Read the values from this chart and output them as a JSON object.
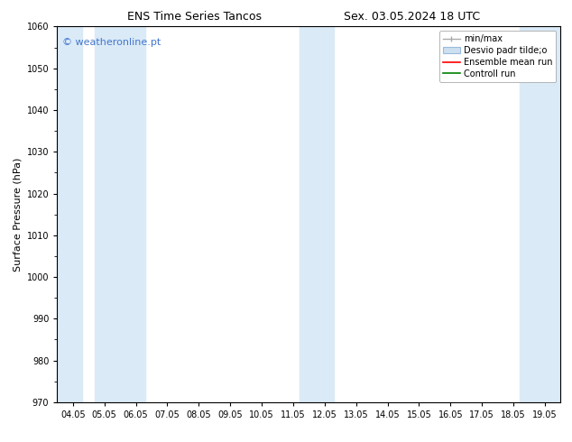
{
  "title_left": "ENS Time Series Tancos",
  "title_right": "Sex. 03.05.2024 18 UTC",
  "ylabel": "Surface Pressure (hPa)",
  "ylim": [
    970,
    1060
  ],
  "yticks": [
    970,
    980,
    990,
    1000,
    1010,
    1020,
    1030,
    1040,
    1050,
    1060
  ],
  "xtick_labels": [
    "04.05",
    "05.05",
    "06.05",
    "07.05",
    "08.05",
    "09.05",
    "10.05",
    "11.05",
    "12.05",
    "13.05",
    "14.05",
    "15.05",
    "16.05",
    "17.05",
    "18.05",
    "19.05"
  ],
  "x_values": [
    0,
    1,
    2,
    3,
    4,
    5,
    6,
    7,
    8,
    9,
    10,
    11,
    12,
    13,
    14,
    15
  ],
  "shaded_ranges": [
    [
      -0.5,
      0.3
    ],
    [
      0.7,
      2.3
    ],
    [
      7.2,
      8.3
    ],
    [
      14.2,
      15.5
    ]
  ],
  "band_color": "#daeaf7",
  "watermark_text": "© weatheronline.pt",
  "watermark_color": "#4477cc",
  "legend_labels": [
    "min/max",
    "Desvio padr tilde;o",
    "Ensemble mean run",
    "Controll run"
  ],
  "legend_colors": [
    "#999999",
    "#cce0f0",
    "red",
    "green"
  ],
  "bg_color": "#ffffff",
  "plot_bg_color": "#ffffff",
  "font_size_title": 9,
  "font_size_axes": 8,
  "font_size_ticks": 7,
  "font_size_watermark": 8,
  "font_size_legend": 7
}
